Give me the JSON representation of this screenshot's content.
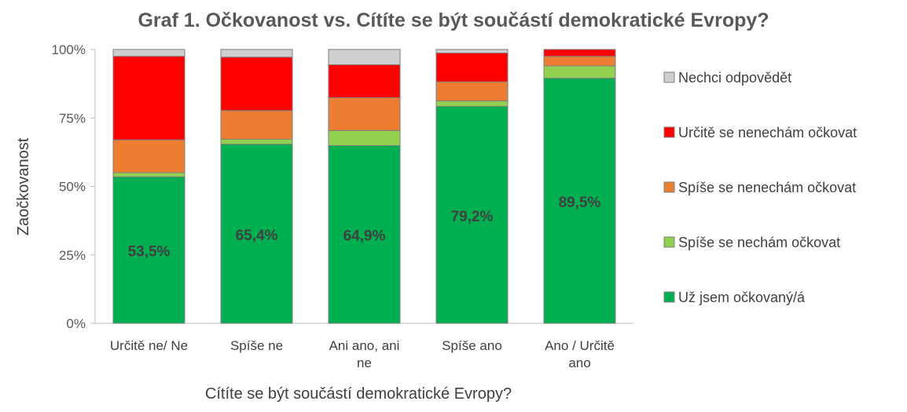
{
  "chart_data": {
    "type": "bar",
    "stacked": true,
    "normalized": true,
    "title": "Graf 1. Očkovanost vs. Cítíte se být součástí demokratické Evropy?",
    "xlabel": "Cítíte se být součástí demokratické Evropy?",
    "ylabel": "Zaočkovanost",
    "ylim": [
      0,
      100
    ],
    "yticks": [
      "0%",
      "25%",
      "50%",
      "75%",
      "100%"
    ],
    "categories": [
      "Určitě ne/ Ne",
      "Spíše ne",
      "Ani ano, ani ne",
      "Spíše ano",
      "Ano / Určitě ano"
    ],
    "series": [
      {
        "name": "Už jsem očkovaný/á",
        "color": "#00b050",
        "values": [
          53.5,
          65.4,
          64.9,
          79.2,
          89.5
        ]
      },
      {
        "name": "Spíše se nechám očkovat",
        "color": "#92d050",
        "values": [
          1.5,
          1.8,
          5.5,
          2.0,
          4.5
        ]
      },
      {
        "name": "Spíše se nenechám očkovat",
        "color": "#ed7d31",
        "values": [
          12.0,
          10.5,
          12.0,
          7.0,
          3.5
        ]
      },
      {
        "name": "Určitě se nenechám očkovat",
        "color": "#ff0000",
        "values": [
          30.5,
          19.5,
          12.0,
          10.5,
          2.5
        ]
      },
      {
        "name": "Nechci odpovědět",
        "color": "#d0cece",
        "values": [
          2.5,
          2.8,
          5.6,
          1.3,
          0.0
        ]
      }
    ],
    "data_labels": [
      "53,5%",
      "65,4%",
      "64,9%",
      "79,2%",
      "89,5%"
    ],
    "legend_position": "right",
    "legend_order": [
      "Nechci odpovědět",
      "Určitě se nenechám očkovat",
      "Spíše se nenechám očkovat",
      "Spíše se nechám očkovat",
      "Už jsem očkovaný/á"
    ],
    "grid": false
  }
}
